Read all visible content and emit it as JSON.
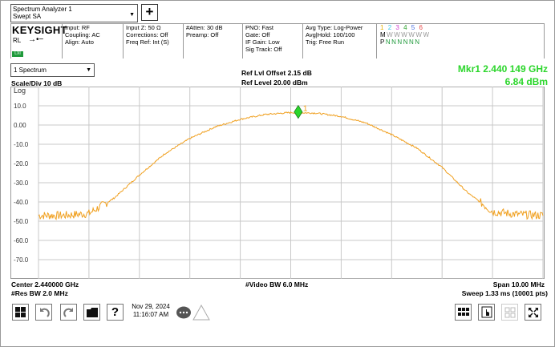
{
  "window": {
    "title_line1": "Spectrum Analyzer 1",
    "title_line2": "Swept SA"
  },
  "brand": "KEYSIGHT",
  "rl_label": "RL",
  "lxi_label": "LXI",
  "settings": {
    "col1": [
      "Input: RF",
      "Coupling: AC",
      "Align: Auto"
    ],
    "col2": [
      "Input Z: 50 Ω",
      "Corrections: Off",
      "Freq Ref: Int (S)"
    ],
    "col3": [
      "#Atten: 30 dB",
      "Preamp: Off"
    ],
    "col4": [
      "PNO: Fast",
      "Gate: Off",
      "IF Gain: Low",
      "Sig Track: Off"
    ],
    "col5": [
      "Avg Type: Log-Power",
      "Avg|Hold: 100/100",
      "Trig: Free Run"
    ]
  },
  "trace_row1": [
    "1",
    "2",
    "3",
    "4",
    "5",
    "6"
  ],
  "trace_colors": [
    "#e8b000",
    "#36c9e8",
    "#d040d0",
    "#2aa12a",
    "#4a6fe0",
    "#e84a4a"
  ],
  "trace_row2_label": "M",
  "trace_row2": [
    "W",
    "W",
    "W",
    "W",
    "W",
    "W"
  ],
  "trace_row3_label": "P",
  "trace_row3": [
    "N",
    "N",
    "N",
    "N",
    "N",
    "N"
  ],
  "view": {
    "name": "1 Spectrum"
  },
  "scale_div": "Scale/Div 10 dB",
  "log_label": "Log",
  "ref_offset": "Ref Lvl Offset 2.15 dB",
  "ref_level": "Ref Level 20.00 dBm",
  "marker": {
    "freq": "Mkr1  2.440 149 GHz",
    "level": "6.84 dBm",
    "label": "1",
    "color": "#2bd62b"
  },
  "y_ticks": [
    "10.0",
    "0.00",
    "-10.0",
    "-20.0",
    "-30.0",
    "-40.0",
    "-50.0",
    "-60.0",
    "-70.0"
  ],
  "footer": {
    "center": "Center 2.440000 GHz",
    "res_bw": "#Res BW 2.0 MHz",
    "video_bw": "#Video BW 6.0 MHz",
    "span": "Span 10.00 MHz",
    "sweep": "Sweep 1.33 ms (10001 pts)"
  },
  "datetime": {
    "date": "Nov 29, 2024",
    "time": "11:16:07 AM"
  },
  "chart_data": {
    "type": "line",
    "xlim_mhz_offset": [
      -5,
      5
    ],
    "ylim": [
      -80,
      20
    ],
    "y_unit": "dBm",
    "trace_color": "#f0a020",
    "x": [
      -5.0,
      -4.5,
      -4.0,
      -3.5,
      -3.0,
      -2.5,
      -2.0,
      -1.5,
      -1.0,
      -0.5,
      0.0,
      0.5,
      1.0,
      1.5,
      2.0,
      2.5,
      3.0,
      3.5,
      4.0,
      4.5,
      5.0
    ],
    "y": [
      -47,
      -47,
      -46,
      -38,
      -26,
      -15,
      -7,
      -1,
      3,
      5.5,
      6.5,
      6.2,
      4.5,
      1,
      -5,
      -12,
      -22,
      -35,
      -45,
      -46.5,
      -47
    ]
  }
}
